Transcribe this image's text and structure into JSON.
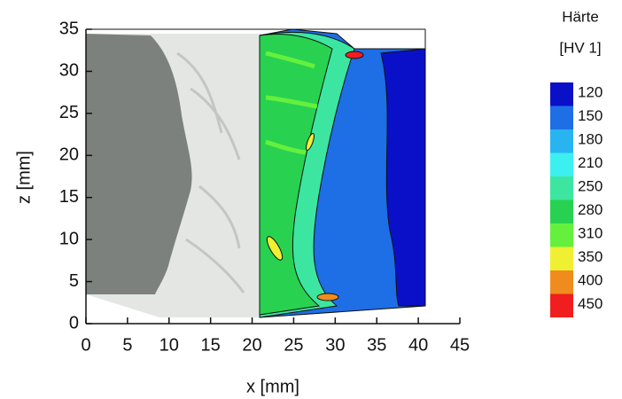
{
  "chart_data": {
    "type": "contour",
    "xlabel": "x [mm]",
    "ylabel": "z [mm]",
    "xlim": [
      0,
      45
    ],
    "ylim": [
      0,
      35
    ],
    "xticks": [
      0,
      5,
      10,
      15,
      20,
      25,
      30,
      35,
      40,
      45
    ],
    "yticks": [
      0,
      5,
      10,
      15,
      20,
      25,
      30,
      35
    ],
    "colorbar": {
      "title": "Härte",
      "unit": "[HV 1]",
      "levels": [
        120,
        150,
        180,
        210,
        250,
        280,
        310,
        350,
        400,
        450
      ],
      "colors": [
        "#0a10c8",
        "#1e6ee6",
        "#28b4f0",
        "#3cf0f0",
        "#3ce6a0",
        "#28d250",
        "#64f03c",
        "#f0f032",
        "#f08c1e",
        "#f01e1e"
      ]
    }
  }
}
